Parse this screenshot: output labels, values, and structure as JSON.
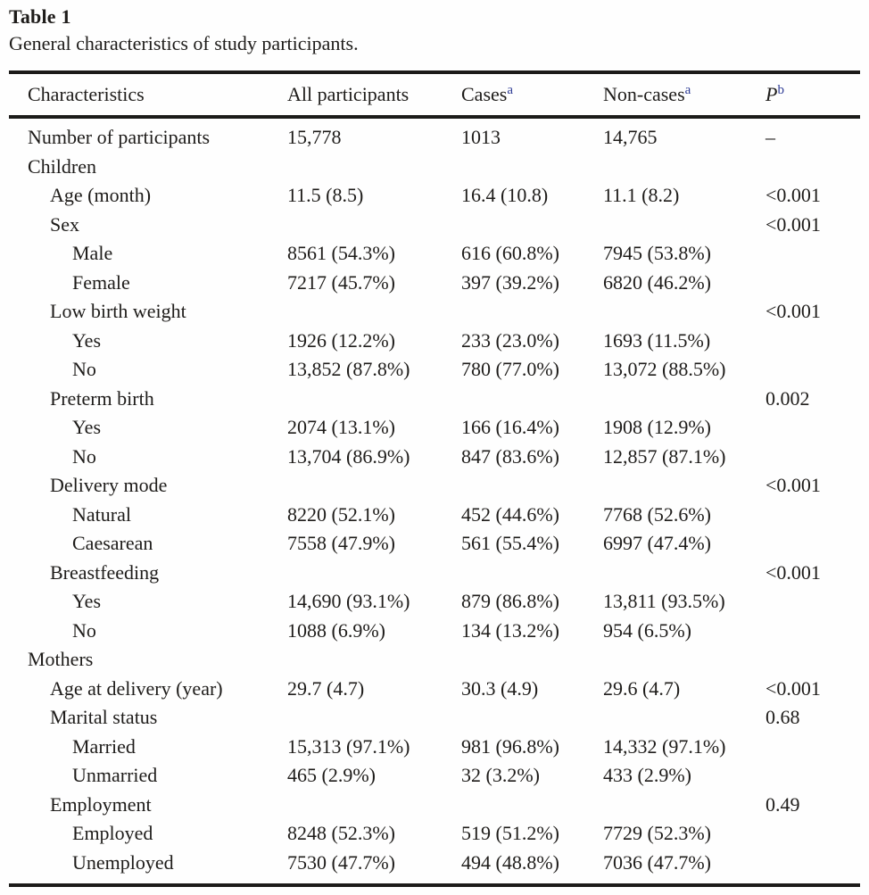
{
  "title": "Table 1",
  "caption": "General characteristics of study participants.",
  "colors": {
    "text": "#1e1c1a",
    "rule": "#1c1b19",
    "footnote_marker": "#2c3a94",
    "background": "#fefefe"
  },
  "table": {
    "columns": [
      {
        "label": "Characteristics",
        "superscript": ""
      },
      {
        "label": "All participants",
        "superscript": ""
      },
      {
        "label": "Cases",
        "superscript": "a"
      },
      {
        "label": "Non-cases",
        "superscript": "a"
      },
      {
        "label": "P",
        "superscript": "b"
      }
    ],
    "rows": [
      {
        "label": "Number of participants",
        "indent": 0,
        "all": "15,778",
        "cases": "1013",
        "noncases": "14,765",
        "p": "–"
      },
      {
        "label": "Children",
        "indent": 0,
        "all": "",
        "cases": "",
        "noncases": "",
        "p": ""
      },
      {
        "label": "Age (month)",
        "indent": 1,
        "all": "11.5 (8.5)",
        "cases": "16.4 (10.8)",
        "noncases": "11.1 (8.2)",
        "p": "<0.001"
      },
      {
        "label": "Sex",
        "indent": 1,
        "all": "",
        "cases": "",
        "noncases": "",
        "p": "<0.001"
      },
      {
        "label": "Male",
        "indent": 2,
        "all": "8561 (54.3%)",
        "cases": "616 (60.8%)",
        "noncases": "7945 (53.8%)",
        "p": ""
      },
      {
        "label": "Female",
        "indent": 2,
        "all": "7217 (45.7%)",
        "cases": "397 (39.2%)",
        "noncases": "6820 (46.2%)",
        "p": ""
      },
      {
        "label": "Low birth weight",
        "indent": 1,
        "all": "",
        "cases": "",
        "noncases": "",
        "p": "<0.001"
      },
      {
        "label": "Yes",
        "indent": 2,
        "all": "1926 (12.2%)",
        "cases": "233 (23.0%)",
        "noncases": "1693 (11.5%)",
        "p": ""
      },
      {
        "label": "No",
        "indent": 2,
        "all": "13,852 (87.8%)",
        "cases": "780 (77.0%)",
        "noncases": "13,072 (88.5%)",
        "p": ""
      },
      {
        "label": "Preterm birth",
        "indent": 1,
        "all": "",
        "cases": "",
        "noncases": "",
        "p": "0.002"
      },
      {
        "label": "Yes",
        "indent": 2,
        "all": "2074 (13.1%)",
        "cases": "166 (16.4%)",
        "noncases": "1908 (12.9%)",
        "p": ""
      },
      {
        "label": "No",
        "indent": 2,
        "all": "13,704 (86.9%)",
        "cases": "847 (83.6%)",
        "noncases": "12,857 (87.1%)",
        "p": ""
      },
      {
        "label": "Delivery mode",
        "indent": 1,
        "all": "",
        "cases": "",
        "noncases": "",
        "p": "<0.001"
      },
      {
        "label": "Natural",
        "indent": 2,
        "all": "8220 (52.1%)",
        "cases": "452 (44.6%)",
        "noncases": "7768 (52.6%)",
        "p": ""
      },
      {
        "label": "Caesarean",
        "indent": 2,
        "all": "7558 (47.9%)",
        "cases": "561 (55.4%)",
        "noncases": "6997 (47.4%)",
        "p": ""
      },
      {
        "label": "Breastfeeding",
        "indent": 1,
        "all": "",
        "cases": "",
        "noncases": "",
        "p": "<0.001"
      },
      {
        "label": "Yes",
        "indent": 2,
        "all": "14,690 (93.1%)",
        "cases": "879 (86.8%)",
        "noncases": "13,811 (93.5%)",
        "p": ""
      },
      {
        "label": "No",
        "indent": 2,
        "all": "1088 (6.9%)",
        "cases": "134 (13.2%)",
        "noncases": "954 (6.5%)",
        "p": ""
      },
      {
        "label": "Mothers",
        "indent": 0,
        "all": "",
        "cases": "",
        "noncases": "",
        "p": ""
      },
      {
        "label": "Age at delivery (year)",
        "indent": 1,
        "all": "29.7 (4.7)",
        "cases": "30.3 (4.9)",
        "noncases": "29.6 (4.7)",
        "p": "<0.001"
      },
      {
        "label": "Marital status",
        "indent": 1,
        "all": "",
        "cases": "",
        "noncases": "",
        "p": "0.68"
      },
      {
        "label": "Married",
        "indent": 2,
        "all": "15,313 (97.1%)",
        "cases": "981 (96.8%)",
        "noncases": "14,332 (97.1%)",
        "p": ""
      },
      {
        "label": "Unmarried",
        "indent": 2,
        "all": "465 (2.9%)",
        "cases": "32 (3.2%)",
        "noncases": "433 (2.9%)",
        "p": ""
      },
      {
        "label": "Employment",
        "indent": 1,
        "all": "",
        "cases": "",
        "noncases": "",
        "p": "0.49"
      },
      {
        "label": "Employed",
        "indent": 2,
        "all": "8248 (52.3%)",
        "cases": "519 (51.2%)",
        "noncases": "7729 (52.3%)",
        "p": ""
      },
      {
        "label": "Unemployed",
        "indent": 2,
        "all": "7530 (47.7%)",
        "cases": "494 (48.8%)",
        "noncases": "7036 (47.7%)",
        "p": ""
      }
    ]
  }
}
